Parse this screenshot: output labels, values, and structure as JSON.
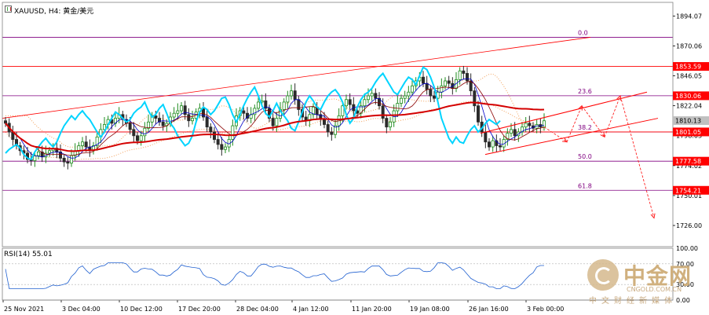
{
  "chart_data": {
    "type": "candlestick",
    "symbol_title": "XAUUSD, H4:  黄金/美元",
    "price_axis": {
      "ylim": [
        1709,
        1905
      ],
      "ticks": [
        "1894.07",
        "1870.06",
        "1846.05",
        "1822.04",
        "1798.03",
        "1774.02",
        "1750.01",
        "1726.00"
      ]
    },
    "time_axis": {
      "ticks": [
        "25 Nov 2021",
        "3 Dec 04:00",
        "10 Dec 12:00",
        "17 Dec 20:00",
        "28 Dec 04:00",
        "4 Jan 12:00",
        "11 Jan 20:00",
        "19 Jan 08:00",
        "26 Jan 16:00",
        "3 Feb 00:00"
      ]
    },
    "price_tags": [
      {
        "value": 1853.59,
        "label": "1853.59",
        "color": "#ff0000"
      },
      {
        "value": 1830.06,
        "label": "1830.06",
        "color": "#ff0000"
      },
      {
        "value": 1810.13,
        "label": "1810.13",
        "color": "#c0c0c0"
      },
      {
        "value": 1801.05,
        "label": "1801.05",
        "color": "#ff0000"
      },
      {
        "value": 1777.58,
        "label": "1777.58",
        "color": "#ff0000"
      },
      {
        "value": 1754.21,
        "label": "1754.21",
        "color": "#ff0000"
      }
    ],
    "fibonacci_levels": [
      {
        "label": "0.0",
        "value": 1877.0
      },
      {
        "label": "23.6",
        "value": 1830.06
      },
      {
        "label": "38.2",
        "value": 1801.05
      },
      {
        "label": "50.0",
        "value": 1777.58
      },
      {
        "label": "61.8",
        "value": 1754.21
      }
    ],
    "close_series": [
      1808,
      1801,
      1795,
      1790,
      1786,
      1784,
      1779,
      1778,
      1782,
      1785,
      1781,
      1784,
      1786,
      1788,
      1785,
      1780,
      1777,
      1776,
      1782,
      1786,
      1790,
      1793,
      1789,
      1786,
      1790,
      1797,
      1803,
      1807,
      1811,
      1808,
      1812,
      1815,
      1811,
      1808,
      1803,
      1798,
      1794,
      1798,
      1804,
      1809,
      1814,
      1812,
      1809,
      1806,
      1808,
      1813,
      1816,
      1818,
      1822,
      1815,
      1810,
      1812,
      1817,
      1820,
      1813,
      1805,
      1801,
      1795,
      1791,
      1787,
      1789,
      1795,
      1806,
      1814,
      1818,
      1816,
      1812,
      1815,
      1820,
      1825,
      1826,
      1820,
      1812,
      1806,
      1812,
      1819,
      1825,
      1830,
      1834,
      1827,
      1819,
      1813,
      1810,
      1815,
      1821,
      1815,
      1811,
      1807,
      1801,
      1799,
      1806,
      1814,
      1822,
      1827,
      1823,
      1818,
      1816,
      1822,
      1827,
      1830,
      1832,
      1828,
      1822,
      1812,
      1805,
      1809,
      1818,
      1824,
      1828,
      1830,
      1833,
      1838,
      1842,
      1845,
      1840,
      1835,
      1830,
      1828,
      1833,
      1838,
      1842,
      1840,
      1836,
      1843,
      1850,
      1848,
      1842,
      1834,
      1822,
      1809,
      1801,
      1793,
      1789,
      1794,
      1790,
      1789,
      1795,
      1800,
      1803,
      1798,
      1801,
      1805,
      1808,
      1806,
      1804,
      1807,
      1805,
      1810
    ],
    "rsi": {
      "label": "RSI(14) 55.01",
      "levels": [
        100.0,
        70.0,
        30.0,
        0.0
      ]
    }
  },
  "watermark": {
    "brand": "中金网",
    "domain": "CNGOLD.COM.CN",
    "subtitle": "中文财经新媒体"
  }
}
